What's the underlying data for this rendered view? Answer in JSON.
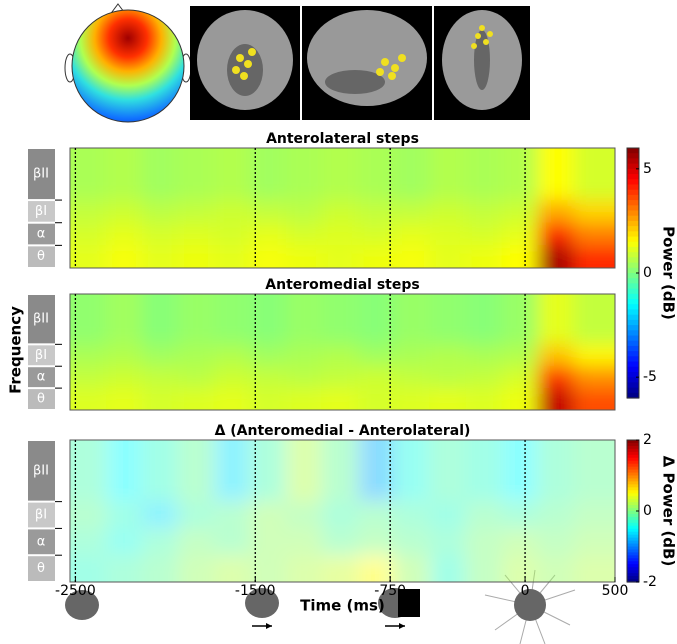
{
  "chart_data": [
    {
      "type": "heatmap",
      "title": "Anterolateral steps",
      "categories": [
        "βII",
        "βI",
        "α",
        "θ"
      ],
      "x": [
        -2430,
        -2230,
        -2030,
        -1830,
        -1630,
        -1430,
        -1230,
        -1030,
        -830,
        -630,
        -430,
        -230,
        -30,
        170,
        370
      ],
      "values": [
        [
          0.5,
          0.6,
          0.4,
          0.5,
          0.6,
          0.4,
          0.5,
          0.6,
          0.5,
          0.4,
          0.6,
          0.5,
          0.6,
          1.5,
          1.0
        ],
        [
          0.8,
          0.9,
          0.7,
          0.8,
          0.9,
          0.8,
          0.7,
          0.9,
          0.8,
          0.8,
          0.9,
          0.8,
          0.9,
          2.5,
          2.0
        ],
        [
          1.0,
          1.2,
          1.0,
          1.1,
          1.0,
          1.2,
          1.0,
          1.1,
          1.0,
          1.2,
          1.1,
          1.0,
          1.2,
          4.0,
          3.0
        ],
        [
          1.2,
          1.4,
          1.2,
          1.3,
          1.2,
          1.4,
          1.3,
          1.2,
          1.3,
          1.4,
          1.2,
          1.3,
          1.5,
          5.5,
          4.0
        ]
      ],
      "xlim": [
        -2530,
        500
      ],
      "clim": [
        -6,
        6
      ],
      "cticks": [
        5,
        0,
        -5
      ],
      "clabel": "Power (dB)",
      "event_lines": [
        -2500,
        -1500,
        -750,
        0
      ]
    },
    {
      "type": "heatmap",
      "title": "Anteromedial steps",
      "categories": [
        "βII",
        "βI",
        "α",
        "θ"
      ],
      "x": [
        -2430,
        -2230,
        -2030,
        -1830,
        -1630,
        -1430,
        -1230,
        -1030,
        -830,
        -630,
        -430,
        -230,
        -30,
        170,
        370
      ],
      "values": [
        [
          0.2,
          0.4,
          0.1,
          0.3,
          0.2,
          0.1,
          0.3,
          0.2,
          0.1,
          0.3,
          0.2,
          0.1,
          0.3,
          1.2,
          0.8
        ],
        [
          0.5,
          0.6,
          0.4,
          0.5,
          0.6,
          0.4,
          0.5,
          0.6,
          0.4,
          0.5,
          0.6,
          0.5,
          0.6,
          2.2,
          1.6
        ],
        [
          0.8,
          0.9,
          0.8,
          0.7,
          0.9,
          0.8,
          0.7,
          0.8,
          0.9,
          0.8,
          0.7,
          0.8,
          1.0,
          3.8,
          2.8
        ],
        [
          1.1,
          1.2,
          1.0,
          1.1,
          1.2,
          1.0,
          1.1,
          1.2,
          1.0,
          1.1,
          1.2,
          1.1,
          1.3,
          5.2,
          3.6
        ]
      ],
      "xlim": [
        -2530,
        500
      ],
      "clim": [
        -6,
        6
      ],
      "ylabel": "Frequency",
      "event_lines": [
        -2500,
        -1500,
        -750,
        0
      ]
    },
    {
      "type": "heatmap",
      "title": "Δ (Anteromedial - Anterolateral)",
      "categories": [
        "βII",
        "βI",
        "α",
        "θ"
      ],
      "x": [
        -2430,
        -2230,
        -2030,
        -1830,
        -1630,
        -1430,
        -1230,
        -1030,
        -830,
        -630,
        -430,
        -230,
        -30,
        170,
        370
      ],
      "values": [
        [
          -0.2,
          -0.5,
          -0.3,
          -0.1,
          -0.6,
          -0.2,
          0.2,
          -0.1,
          -0.8,
          -0.4,
          -0.2,
          -0.3,
          -0.5,
          -0.2,
          -0.1
        ],
        [
          -0.1,
          -0.3,
          -0.6,
          -0.2,
          -0.1,
          0.1,
          0.0,
          -0.2,
          -0.1,
          -0.2,
          -0.3,
          -0.1,
          -0.2,
          -0.1,
          0.0
        ],
        [
          -0.2,
          -0.4,
          -0.2,
          0.0,
          -0.1,
          0.1,
          0.1,
          -0.1,
          0.0,
          -0.1,
          -0.2,
          0.0,
          0.1,
          0.0,
          0.1
        ],
        [
          -0.3,
          -0.2,
          -0.1,
          0.1,
          0.2,
          0.1,
          0.2,
          0.3,
          0.5,
          0.1,
          -0.3,
          0.0,
          0.2,
          0.1,
          0.2
        ]
      ],
      "xlim": [
        -2530,
        500
      ],
      "clim": [
        -2,
        2
      ],
      "cticks": [
        2,
        0,
        -2
      ],
      "clabel": "Δ Power (dB)",
      "xticks": [
        -2500,
        -1500,
        -750,
        0,
        500
      ],
      "xlabel": "Time (ms)",
      "event_lines": [
        -2500,
        -1500,
        -750,
        0
      ]
    }
  ]
}
